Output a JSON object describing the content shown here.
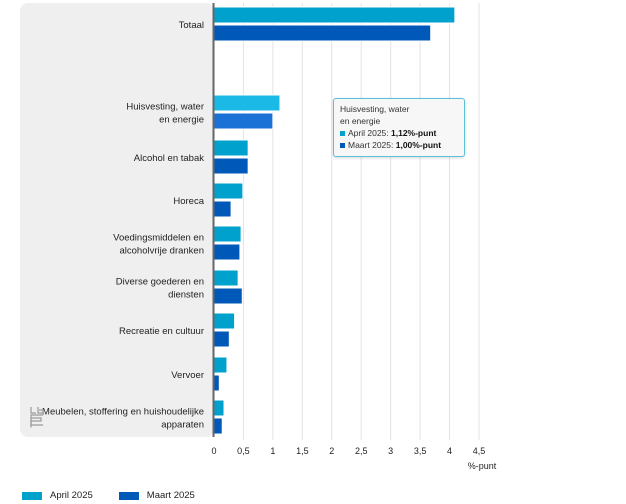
{
  "chart_data": {
    "type": "bar",
    "orientation": "horizontal",
    "title": "",
    "xlabel": "%-punt",
    "ylabel": "",
    "xlim": [
      0,
      4.5
    ],
    "xticks": [
      0,
      0.5,
      1,
      1.5,
      2,
      2.5,
      3,
      3.5,
      4,
      4.5
    ],
    "xtick_labels": [
      "0",
      "0,5",
      "1",
      "1,5",
      "2",
      "2,5",
      "3",
      "3,5",
      "4",
      "4,5"
    ],
    "grid": true,
    "legend_position": "bottom-left",
    "categories": [
      [
        "Totaal"
      ],
      [
        "Huisvesting, water",
        "en energie"
      ],
      [
        "Alcohol en tabak"
      ],
      [
        "Horeca"
      ],
      [
        "Voedingsmiddelen en",
        "alcoholvrije dranken"
      ],
      [
        "Diverse goederen en",
        "diensten"
      ],
      [
        "Recreatie en cultuur"
      ],
      [
        "Vervoer"
      ],
      [
        "Meubelen, stoffering en huishoudelijke",
        "apparaten"
      ]
    ],
    "series": [
      {
        "name": "April 2025",
        "color": "#00a1cd",
        "highlight_color": "#1bb9e6",
        "values": [
          4.09,
          1.12,
          0.58,
          0.49,
          0.46,
          0.41,
          0.35,
          0.22,
          0.17
        ]
      },
      {
        "name": "Maart 2025",
        "color": "#0058b8",
        "highlight_color": "#1a72d6",
        "values": [
          3.68,
          1.0,
          0.58,
          0.29,
          0.44,
          0.48,
          0.26,
          0.09,
          0.14
        ]
      }
    ],
    "highlighted_category": 1
  },
  "tooltip": {
    "title_line1": "Huisvesting, water",
    "title_line2": "en energie",
    "rows": [
      {
        "label": "April 2025: ",
        "value": "1,12%-punt",
        "color": "#00a1cd"
      },
      {
        "label": "Maart 2025: ",
        "value": "1,00%-punt",
        "color": "#0058b8"
      }
    ]
  },
  "legend": [
    {
      "label": "April 2025",
      "color": "#00a1cd"
    },
    {
      "label": "Maart 2025",
      "color": "#0058b8"
    }
  ],
  "logo": {
    "icon": "cbs-logo-icon"
  }
}
